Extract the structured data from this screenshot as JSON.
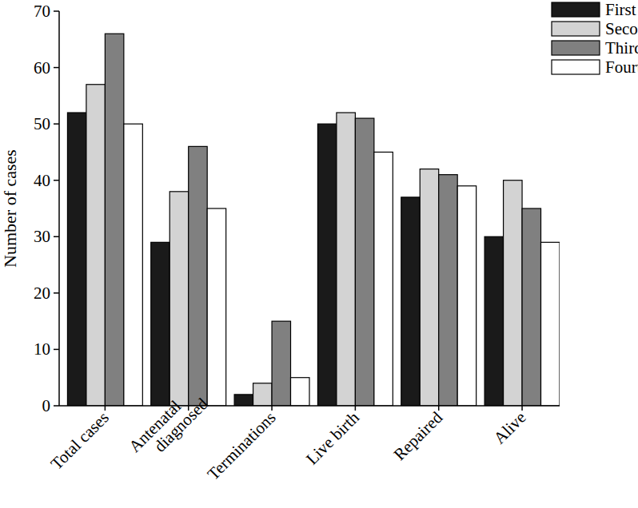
{
  "chart_data": {
    "type": "bar",
    "y_label": "Number of cases",
    "categories": [
      "Total cases",
      "Antenatal diagnosed",
      "Terminations",
      "Live birth",
      "Repaired",
      "Alive"
    ],
    "series": [
      {
        "name": "First",
        "color": "#1a1a1a",
        "values": [
          52,
          29,
          2,
          50,
          37,
          30
        ]
      },
      {
        "name": "Second",
        "color": "#d3d3d3",
        "values": [
          57,
          38,
          4,
          52,
          42,
          40
        ]
      },
      {
        "name": "Third",
        "color": "#808080",
        "values": [
          66,
          46,
          15,
          51,
          41,
          35
        ]
      },
      {
        "name": "Fourth",
        "color": "#ffffff",
        "values": [
          50,
          35,
          5,
          45,
          39,
          29
        ]
      }
    ],
    "ylim": [
      0,
      70
    ],
    "yticks": [
      0,
      10,
      20,
      30,
      40,
      50,
      60,
      70
    ],
    "legend": "top-right",
    "grid": false
  }
}
